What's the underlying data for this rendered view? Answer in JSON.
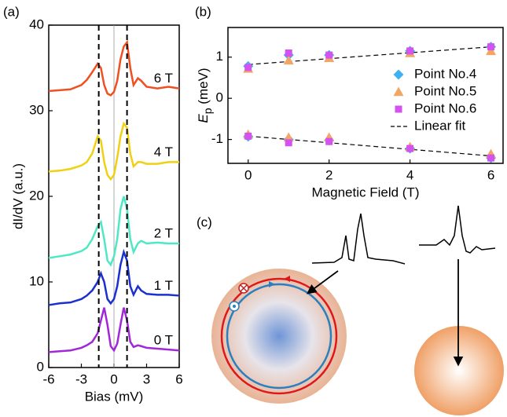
{
  "chart_data": [
    {
      "type": "line",
      "label": "(a)",
      "xlabel": "Bias (mV)",
      "ylabel": "dI/dV (a.u.)",
      "xlim": [
        -6,
        6
      ],
      "ylim": [
        0,
        40
      ],
      "xticks": [
        -6,
        -3,
        0,
        3,
        6
      ],
      "yticks": [
        0,
        10,
        20,
        30,
        40
      ],
      "vlines": [
        -1.4,
        1.2
      ],
      "ref_vline": 0,
      "x": [
        -6,
        -5,
        -4,
        -3,
        -2.5,
        -2,
        -1.5,
        -1.2,
        -0.9,
        -0.6,
        -0.3,
        0,
        0.3,
        0.6,
        0.9,
        1.2,
        1.5,
        1.8,
        2.2,
        2.5,
        3,
        4,
        5,
        6
      ],
      "series": [
        {
          "name": "0 T",
          "color": "#a028d8",
          "values": [
            1.8,
            1.9,
            2.0,
            2.3,
            2.6,
            3.0,
            4.0,
            5.5,
            7.0,
            5.0,
            2.5,
            2.0,
            2.8,
            5.0,
            7.0,
            5.5,
            3.0,
            2.4,
            2.6,
            2.5,
            2.3,
            2.2,
            2.1,
            2.0
          ]
        },
        {
          "name": "1 T",
          "color": "#1c30d0",
          "values": [
            7.3,
            7.5,
            7.6,
            8.0,
            8.4,
            9.0,
            10.0,
            11.0,
            10.0,
            8.0,
            7.5,
            8.0,
            9.5,
            12.0,
            13.5,
            12.5,
            9.5,
            8.5,
            9.5,
            9.0,
            8.6,
            8.5,
            8.5,
            8.4
          ]
        },
        {
          "name": "2 T",
          "color": "#4ee8c4",
          "values": [
            12.8,
            13.0,
            13.2,
            13.6,
            14.0,
            15.0,
            16.5,
            17.0,
            15.0,
            12.5,
            12.0,
            13.0,
            15.0,
            18.5,
            20.0,
            18.5,
            15.0,
            13.5,
            14.5,
            14.8,
            14.5,
            14.6,
            14.5,
            14.5
          ]
        },
        {
          "name": "4 T",
          "color": "#f0d012",
          "values": [
            22.9,
            23.0,
            23.2,
            23.6,
            24.0,
            25.0,
            27.0,
            26.5,
            24.0,
            22.5,
            22.0,
            22.5,
            24.5,
            27.0,
            28.5,
            28.0,
            25.0,
            23.5,
            24.0,
            24.0,
            23.8,
            23.8,
            24.0,
            24.0
          ]
        },
        {
          "name": "6 T",
          "color": "#f05020",
          "values": [
            32.3,
            32.4,
            32.5,
            33.0,
            33.6,
            34.5,
            35.5,
            35.0,
            33.0,
            32.0,
            31.8,
            32.2,
            33.5,
            36.0,
            37.5,
            38.0,
            35.0,
            33.0,
            33.8,
            33.5,
            32.8,
            32.6,
            32.8,
            32.6
          ]
        }
      ]
    },
    {
      "type": "scatter",
      "label": "(b)",
      "xlabel": "Magnetic Field (T)",
      "ylabel": "E",
      "ylabel_sub": "p",
      "ylabel_unit": " (meV)",
      "xlim": [
        -0.5,
        6.3
      ],
      "ylim": [
        -1.58,
        1.72
      ],
      "xticks": [
        0,
        2,
        4,
        6
      ],
      "yticks": [
        -1,
        0,
        1
      ],
      "legend": "right",
      "x": [
        0,
        1,
        2,
        4,
        6,
        0,
        1,
        2,
        4,
        6
      ],
      "series": [
        {
          "name": "Point No.4",
          "color": "#3fb0f2",
          "marker": "diamond",
          "values": [
            0.78,
            1.05,
            1.05,
            1.15,
            1.25,
            -0.93,
            -1.0,
            -1.02,
            -1.22,
            -1.45
          ]
        },
        {
          "name": "Point No.5",
          "color": "#f2a666",
          "marker": "triangle",
          "values": [
            0.72,
            0.92,
            0.98,
            1.1,
            1.15,
            -0.88,
            -0.95,
            -0.95,
            -1.18,
            -1.35
          ]
        },
        {
          "name": "Point No.6",
          "color": "#d452f0",
          "marker": "square",
          "values": [
            0.75,
            1.1,
            1.05,
            1.15,
            1.25,
            -0.92,
            -1.08,
            -1.05,
            -1.22,
            -1.45
          ]
        }
      ],
      "fit": {
        "name": "Linear fit",
        "lines": [
          {
            "x": [
              0,
              6
            ],
            "values": [
              0.82,
              1.25
            ]
          },
          {
            "x": [
              0,
              6
            ],
            "values": [
              -0.92,
              -1.4
            ]
          }
        ]
      }
    }
  ],
  "panel_c": {
    "label": "(c)"
  }
}
